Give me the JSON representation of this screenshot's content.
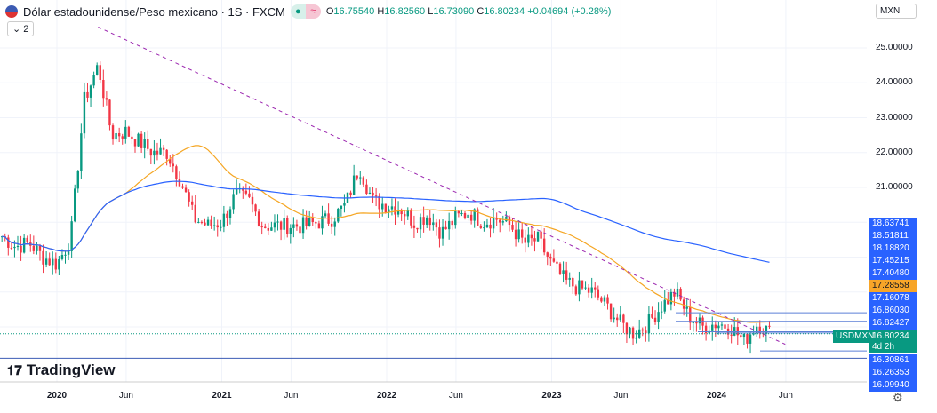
{
  "header": {
    "title": "Dólar estadounidense/Peso mexicano · 1S · FXCM",
    "open_label": "O",
    "open": "16.75540",
    "high_label": "H",
    "high": "16.82560",
    "low_label": "L",
    "low": "16.73090",
    "close_label": "C",
    "close": "16.80234",
    "change": "+0.04694 (+0.28%)",
    "indicators_collapsed": "2",
    "icon": "flag-us-mx"
  },
  "currency": "MXN",
  "logo": "TradingView",
  "symbol_badge": "USDMXN",
  "countdown": "4d 2h",
  "colors": {
    "up": "#089981",
    "down": "#f23645",
    "ma_fast": "#f5a623",
    "ma_slow": "#2962ff",
    "accent": "#2962ff"
  },
  "chart_data": {
    "type": "candlestick",
    "interval": "weekly",
    "yticks": [
      "25.00000",
      "24.00000",
      "23.00000",
      "22.00000",
      "21.00000"
    ],
    "xticks": [
      "2020",
      "Jun",
      "2021",
      "Jun",
      "2022",
      "Jun",
      "2023",
      "Jun",
      "2024",
      "Jun"
    ],
    "price_labels": [
      "18.63741",
      "18.51811",
      "18.18820",
      "17.45215",
      "17.40480",
      "17.16078",
      "16.86030",
      "16.82427",
      "16.30861",
      "16.26353",
      "16.09940"
    ],
    "highlight_label": "17.28558",
    "current_price": "16.80234",
    "monthly_closes": [
      [
        "2019-09",
        19.6
      ],
      [
        "2019-10",
        19.3
      ],
      [
        "2019-11",
        19.4
      ],
      [
        "2019-12",
        19.0
      ],
      [
        "2020-01",
        18.8
      ],
      [
        "2020-02",
        19.5
      ],
      [
        "2020-03",
        23.5
      ],
      [
        "2020-04",
        24.5
      ],
      [
        "2020-05",
        22.5
      ],
      [
        "2020-06",
        22.6
      ],
      [
        "2020-07",
        22.3
      ],
      [
        "2020-08",
        22.0
      ],
      [
        "2020-09",
        22.0
      ],
      [
        "2020-10",
        21.2
      ],
      [
        "2020-11",
        20.1
      ],
      [
        "2020-12",
        19.9
      ],
      [
        "2021-01",
        20.0
      ],
      [
        "2021-02",
        20.8
      ],
      [
        "2021-03",
        20.6
      ],
      [
        "2021-04",
        19.9
      ],
      [
        "2021-05",
        19.9
      ],
      [
        "2021-06",
        19.9
      ],
      [
        "2021-07",
        19.9
      ],
      [
        "2021-08",
        20.0
      ],
      [
        "2021-09",
        20.1
      ],
      [
        "2021-10",
        20.5
      ],
      [
        "2021-11",
        21.6
      ],
      [
        "2021-12",
        20.6
      ],
      [
        "2022-01",
        20.5
      ],
      [
        "2022-02",
        20.4
      ],
      [
        "2022-03",
        20.0
      ],
      [
        "2022-04",
        20.2
      ],
      [
        "2022-05",
        19.7
      ],
      [
        "2022-06",
        20.1
      ],
      [
        "2022-07",
        20.3
      ],
      [
        "2022-08",
        20.0
      ],
      [
        "2022-09",
        20.1
      ],
      [
        "2022-10",
        19.9
      ],
      [
        "2022-11",
        19.4
      ],
      [
        "2022-12",
        19.5
      ],
      [
        "2023-01",
        18.8
      ],
      [
        "2023-02",
        18.3
      ],
      [
        "2023-03",
        18.1
      ],
      [
        "2023-04",
        18.0
      ],
      [
        "2023-05",
        17.6
      ],
      [
        "2023-06",
        17.1
      ],
      [
        "2023-07",
        16.8
      ],
      [
        "2023-08",
        17.1
      ],
      [
        "2023-09",
        17.6
      ],
      [
        "2023-10",
        18.0
      ],
      [
        "2023-11",
        17.3
      ],
      [
        "2023-12",
        17.0
      ],
      [
        "2024-01",
        17.1
      ],
      [
        "2024-02",
        17.0
      ],
      [
        "2024-03",
        16.6
      ],
      [
        "2024-04",
        17.1
      ],
      [
        "2024-05",
        16.8
      ]
    ],
    "trendline": [
      [
        "2020-04",
        25.6
      ],
      [
        "2024-06",
        16.5
      ]
    ],
    "horizontal_levels": [
      17.4048,
      17.16078,
      16.8603,
      16.82427,
      16.30861,
      16.0994
    ]
  }
}
